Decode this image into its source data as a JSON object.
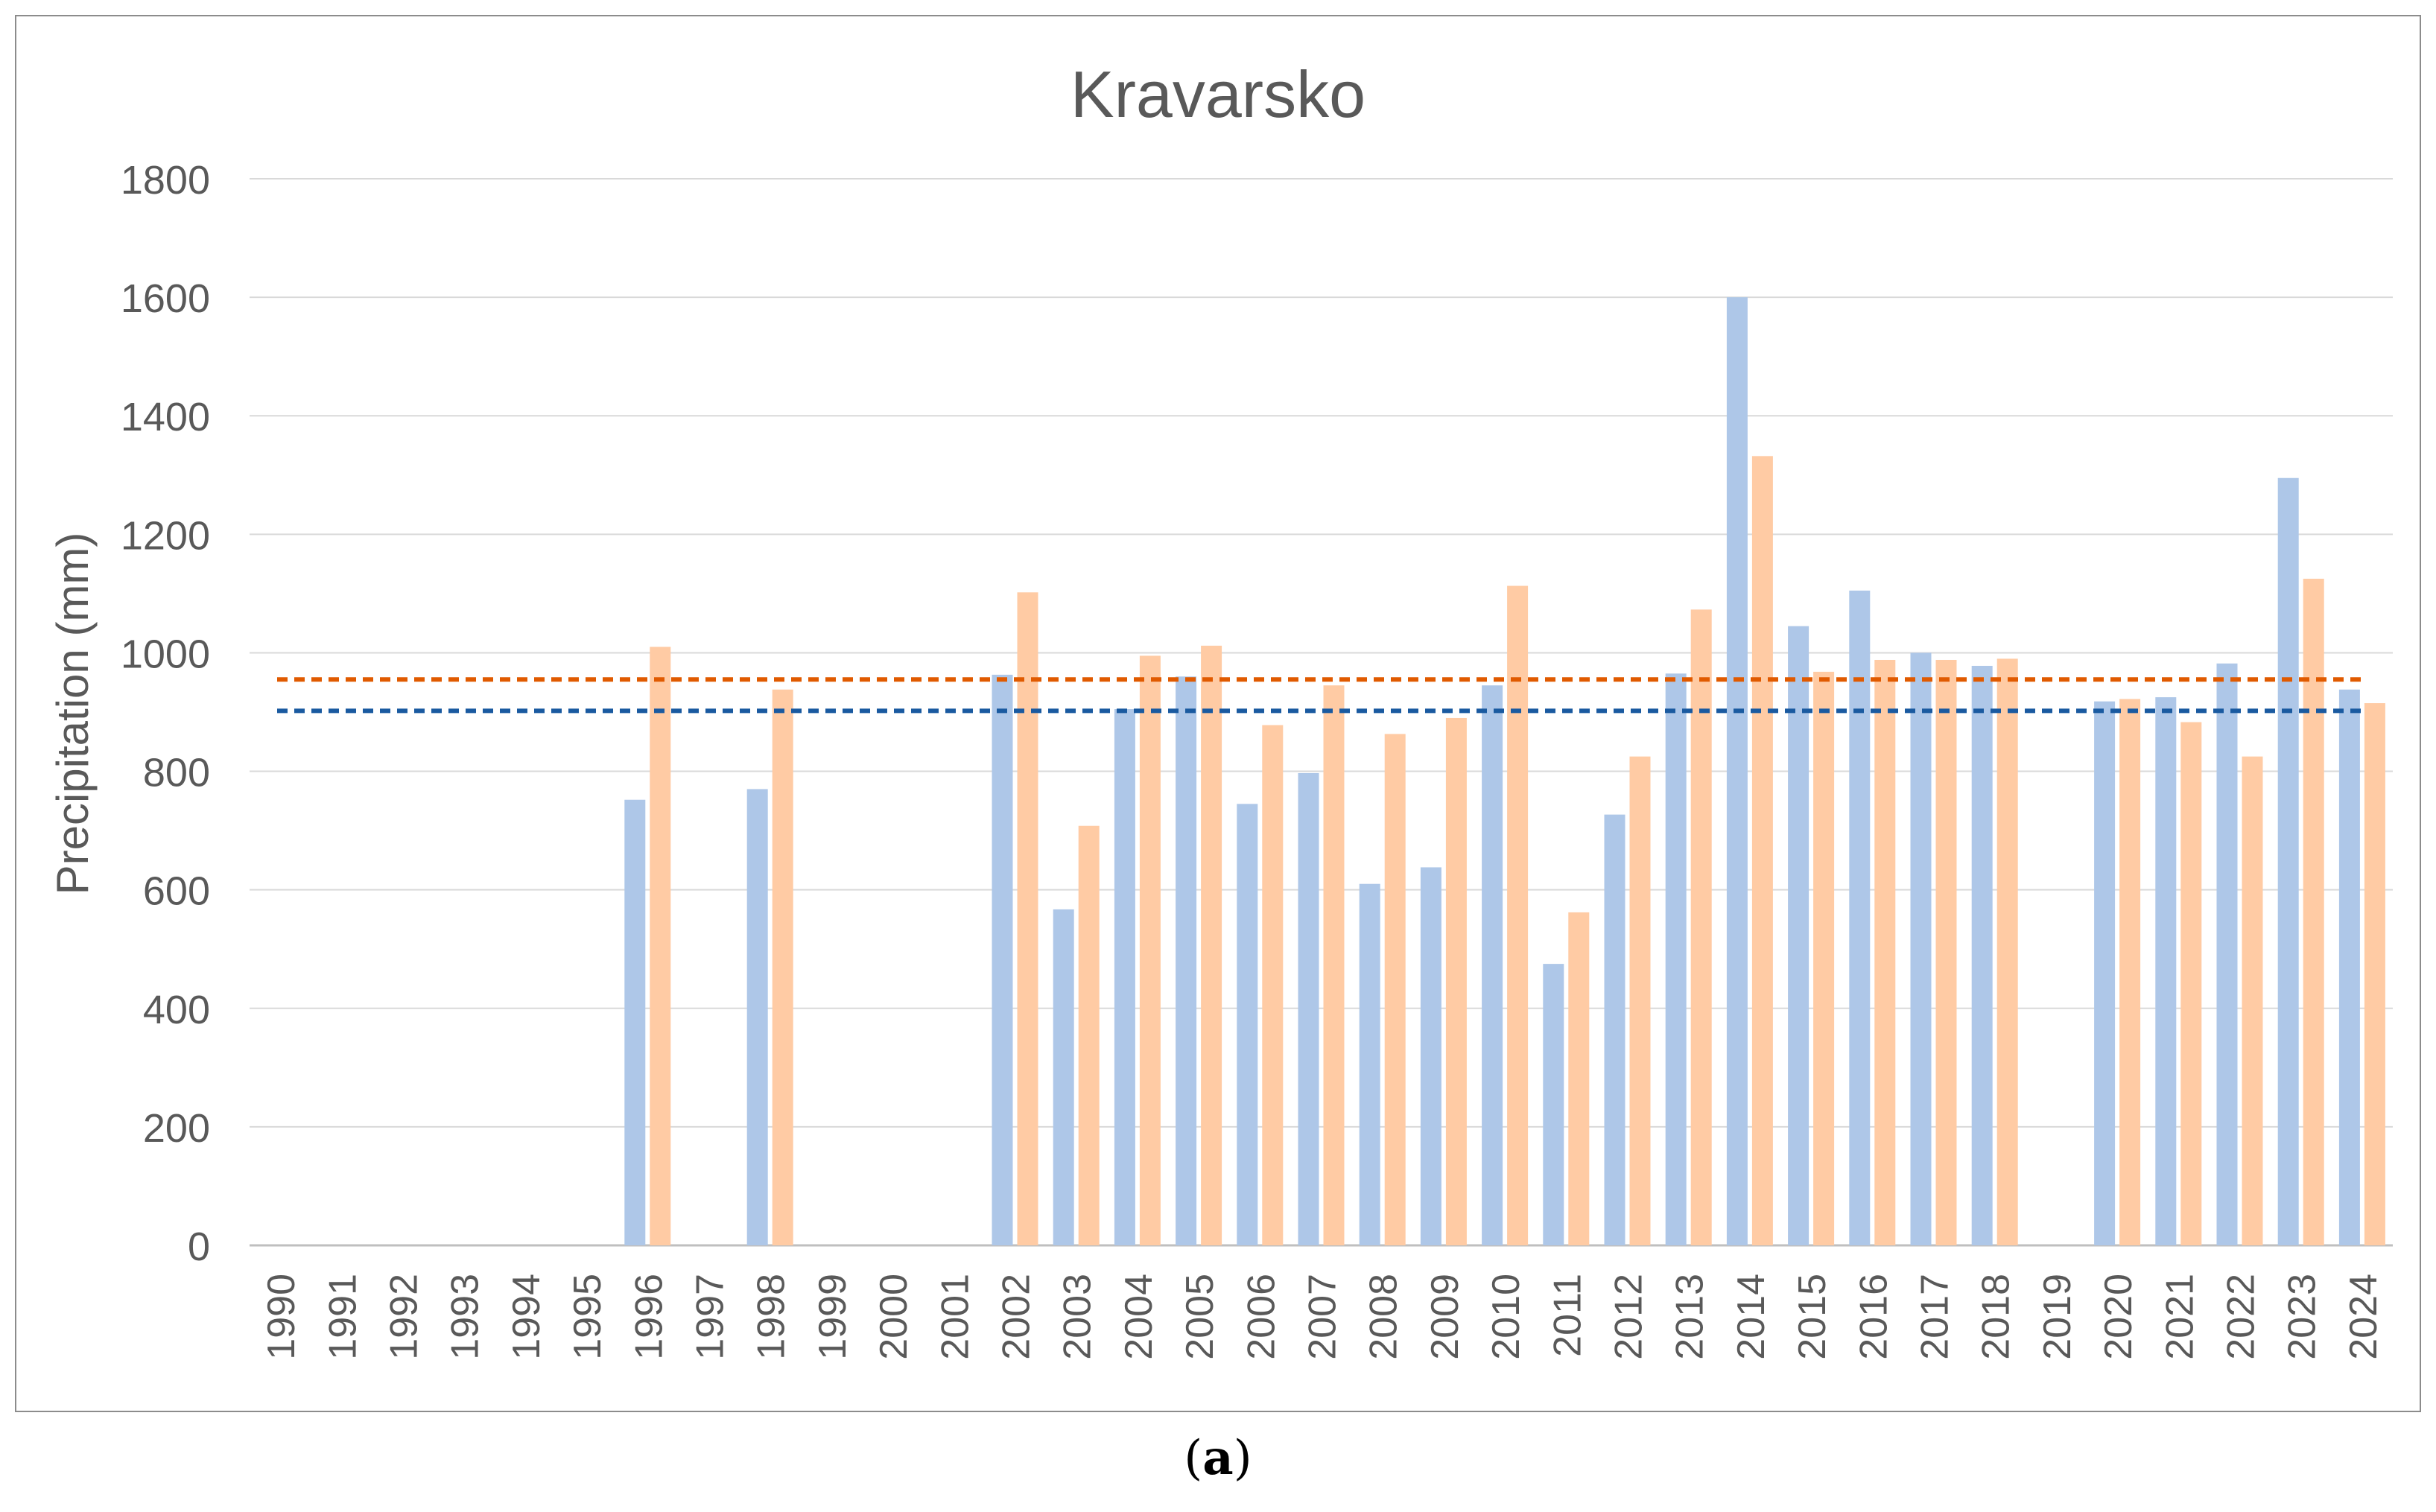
{
  "caption": {
    "open": "(",
    "label": "a",
    "close": ")"
  },
  "chart_data": {
    "type": "bar",
    "title": "Kravarsko",
    "ylabel": "Precipitation (mm)",
    "xlabel": "",
    "ylim": [
      0,
      1800
    ],
    "yticks": [
      0,
      200,
      400,
      600,
      800,
      1000,
      1200,
      1400,
      1600,
      1800
    ],
    "grid": true,
    "legend": "none",
    "categories": [
      "1990",
      "1991",
      "1992",
      "1993",
      "1994",
      "1995",
      "1996",
      "1997",
      "1998",
      "1999",
      "2000",
      "2001",
      "2002",
      "2003",
      "2004",
      "2005",
      "2006",
      "2007",
      "2008",
      "2009",
      "2010",
      "2011",
      "2012",
      "2013",
      "2014",
      "2015",
      "2016",
      "2017",
      "2018",
      "2019",
      "2020",
      "2021",
      "2022",
      "2023",
      "2024"
    ],
    "series": [
      {
        "color": "#aec7e8",
        "values": [
          null,
          null,
          null,
          null,
          null,
          null,
          752,
          null,
          770,
          null,
          null,
          null,
          963,
          567,
          905,
          960,
          745,
          797,
          610,
          638,
          945,
          475,
          727,
          965,
          1600,
          1045,
          1105,
          1000,
          978,
          null,
          918,
          925,
          982,
          1295,
          938
        ]
      },
      {
        "color": "#ffcba4",
        "values": [
          null,
          null,
          null,
          null,
          null,
          null,
          1010,
          null,
          938,
          null,
          null,
          null,
          1102,
          708,
          995,
          1012,
          878,
          945,
          863,
          890,
          1113,
          562,
          825,
          1073,
          1332,
          968,
          988,
          988,
          990,
          null,
          922,
          883,
          825,
          1125,
          915
        ]
      }
    ],
    "reference_lines": [
      {
        "value": 955,
        "color": "#e05a00",
        "style": "dashed"
      },
      {
        "value": 902,
        "color": "#1a5aa0",
        "style": "dashed"
      }
    ],
    "colors": {
      "axis_text": "#595959",
      "title_text": "#595959",
      "gridline": "#d9d9d9",
      "frame": "#8c8c8c"
    }
  }
}
